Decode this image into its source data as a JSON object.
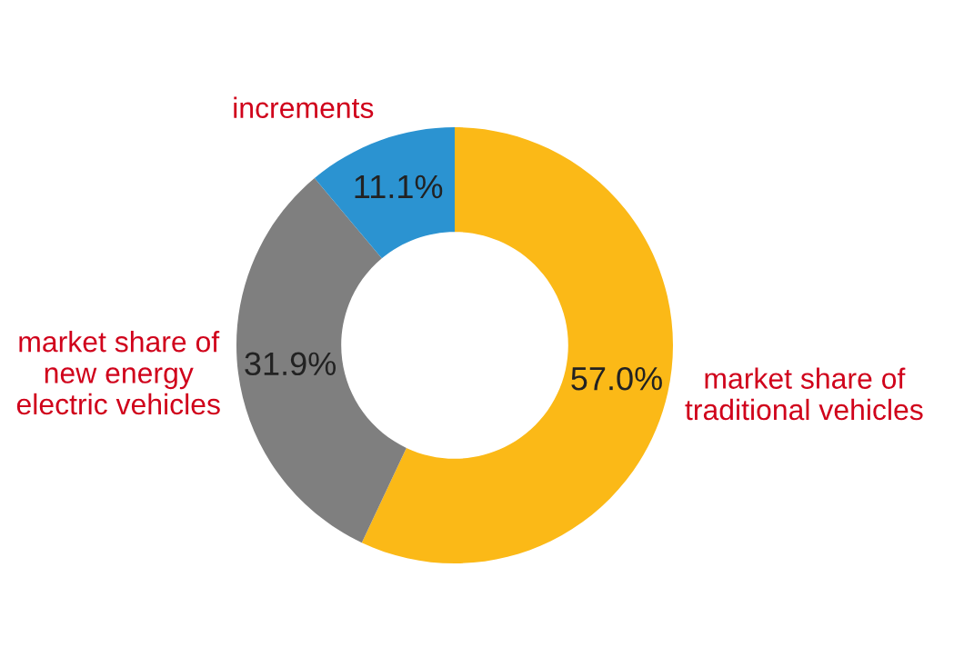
{
  "chart_data": {
    "type": "donut",
    "categories": [
      "market share of\ntraditional vehicles",
      "market share of\nnew energy\nelectric vehicles",
      "increments"
    ],
    "values": [
      57.0,
      31.9,
      11.1
    ],
    "colors": [
      "#fbb917",
      "#7f7f7f",
      "#2b93d1"
    ],
    "value_labels": [
      "57.0%",
      "31.9%",
      "11.1%"
    ],
    "legend": false
  }
}
